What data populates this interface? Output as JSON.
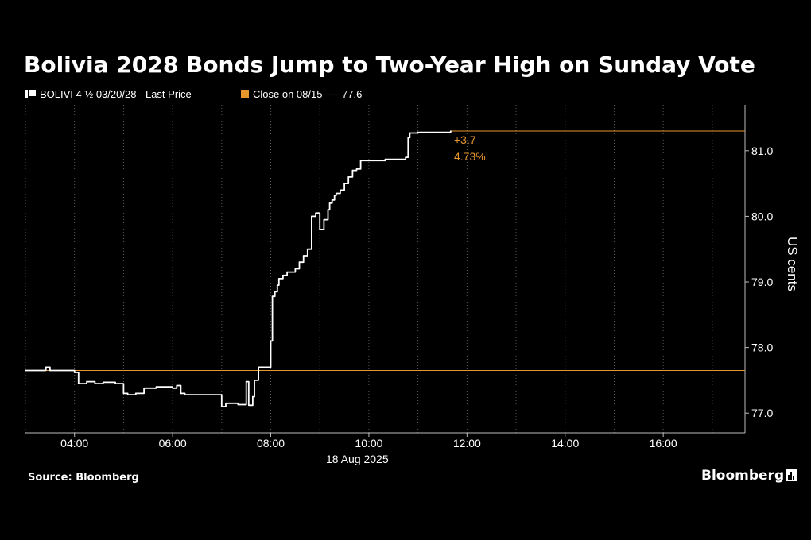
{
  "chart_data": {
    "type": "line",
    "title": "Bolivia 2028 Bonds Jump to Two-Year High on Sunday Vote",
    "legend": [
      {
        "label": "BOLIVI 4 ½ 03/20/28 - Last Price",
        "color": "#ffffff"
      },
      {
        "label": "Close on 08/15 ---- 77.6",
        "color": "#e8962e"
      }
    ],
    "xlabel": "18 Aug 2025",
    "ylabel": "US cents",
    "x_ticks": [
      "04:00",
      "06:00",
      "08:00",
      "10:00",
      "12:00",
      "14:00",
      "16:00"
    ],
    "y_ticks": [
      "77.0",
      "78.0",
      "79.0",
      "80.0",
      "81.0"
    ],
    "xlim": [
      "03:00",
      "17:40"
    ],
    "ylim": [
      76.7,
      81.7
    ],
    "grid": "vertical dotted",
    "y_axis_side": "right",
    "reference_line": {
      "value": 77.65,
      "color": "#e8962e"
    },
    "close_line": {
      "from": "11:40",
      "value": 81.3,
      "color": "#e8962e"
    },
    "annotations": [
      "+3.7",
      "4.73%"
    ],
    "series": [
      {
        "color": "#ffffff",
        "x": [
          "03:00",
          "03:20",
          "03:25",
          "03:30",
          "04:00",
          "04:05",
          "04:15",
          "04:25",
          "04:35",
          "04:50",
          "05:00",
          "05:05",
          "05:15",
          "05:25",
          "05:30",
          "05:40",
          "06:00",
          "06:05",
          "06:10",
          "06:15",
          "06:20",
          "06:50",
          "07:00",
          "07:05",
          "07:20",
          "07:30",
          "07:33",
          "07:38",
          "07:40",
          "07:45",
          "08:00",
          "08:02",
          "08:05",
          "08:08",
          "08:10",
          "08:15",
          "08:20",
          "08:30",
          "08:35",
          "08:40",
          "08:45",
          "08:48",
          "08:50",
          "08:55",
          "09:00",
          "09:05",
          "09:10",
          "09:12",
          "09:15",
          "09:18",
          "09:20",
          "09:25",
          "09:30",
          "09:35",
          "09:40",
          "09:45",
          "09:50",
          "09:55",
          "10:00",
          "10:20",
          "10:40",
          "10:45",
          "10:48",
          "10:50",
          "11:00",
          "11:20",
          "11:40"
        ],
        "y": [
          77.65,
          77.65,
          77.7,
          77.65,
          77.62,
          77.45,
          77.48,
          77.45,
          77.47,
          77.45,
          77.3,
          77.28,
          77.3,
          77.38,
          77.38,
          77.4,
          77.38,
          77.42,
          77.3,
          77.28,
          77.28,
          77.28,
          77.1,
          77.15,
          77.13,
          77.48,
          77.12,
          77.25,
          77.5,
          77.7,
          78.1,
          78.78,
          78.85,
          78.95,
          79.05,
          79.1,
          79.15,
          79.2,
          79.3,
          79.4,
          79.5,
          79.5,
          80.0,
          80.05,
          79.8,
          79.95,
          80.1,
          80.2,
          80.25,
          80.32,
          80.35,
          80.4,
          80.5,
          80.6,
          80.7,
          80.72,
          80.85,
          80.85,
          80.85,
          80.87,
          80.87,
          80.9,
          81.2,
          81.27,
          81.28,
          81.28,
          81.3
        ]
      }
    ]
  },
  "footer": {
    "source": "Source: Bloomberg",
    "brand": "Bloomberg"
  }
}
